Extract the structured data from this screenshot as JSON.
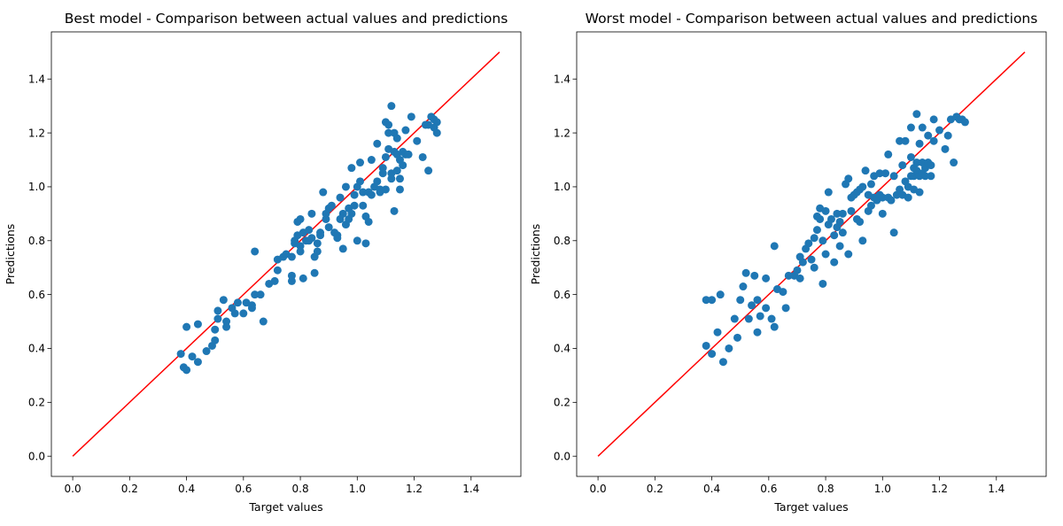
{
  "chart_data": [
    {
      "type": "scatter",
      "title": "Best model - Comparison between actual values and predictions",
      "xlabel": "Target values",
      "ylabel": "Predictions",
      "xlim": [
        -0.075,
        1.575
      ],
      "ylim": [
        -0.075,
        1.575
      ],
      "xticks": [
        0.0,
        0.2,
        0.4,
        0.6,
        0.8,
        1.0,
        1.2,
        1.4
      ],
      "yticks": [
        0.0,
        0.2,
        0.4,
        0.6,
        0.8,
        1.0,
        1.2,
        1.4
      ],
      "grid": false,
      "point_color": "#1f77b4",
      "line_color": "#ff0000",
      "reference_line": [
        [
          0.0,
          0.0
        ],
        [
          1.5,
          1.5
        ]
      ],
      "points": [
        [
          0.38,
          0.38
        ],
        [
          0.39,
          0.33
        ],
        [
          0.4,
          0.32
        ],
        [
          0.4,
          0.48
        ],
        [
          0.42,
          0.37
        ],
        [
          0.44,
          0.35
        ],
        [
          0.44,
          0.49
        ],
        [
          0.47,
          0.39
        ],
        [
          0.49,
          0.41
        ],
        [
          0.5,
          0.43
        ],
        [
          0.5,
          0.47
        ],
        [
          0.51,
          0.51
        ],
        [
          0.51,
          0.54
        ],
        [
          0.53,
          0.58
        ],
        [
          0.54,
          0.5
        ],
        [
          0.54,
          0.48
        ],
        [
          0.56,
          0.55
        ],
        [
          0.57,
          0.53
        ],
        [
          0.58,
          0.57
        ],
        [
          0.6,
          0.53
        ],
        [
          0.61,
          0.57
        ],
        [
          0.63,
          0.55
        ],
        [
          0.63,
          0.56
        ],
        [
          0.64,
          0.6
        ],
        [
          0.64,
          0.76
        ],
        [
          0.66,
          0.6
        ],
        [
          0.67,
          0.5
        ],
        [
          0.69,
          0.64
        ],
        [
          0.71,
          0.65
        ],
        [
          0.72,
          0.69
        ],
        [
          0.72,
          0.73
        ],
        [
          0.74,
          0.74
        ],
        [
          0.75,
          0.75
        ],
        [
          0.77,
          0.65
        ],
        [
          0.77,
          0.67
        ],
        [
          0.77,
          0.74
        ],
        [
          0.78,
          0.79
        ],
        [
          0.78,
          0.8
        ],
        [
          0.79,
          0.82
        ],
        [
          0.79,
          0.87
        ],
        [
          0.8,
          0.88
        ],
        [
          0.8,
          0.78
        ],
        [
          0.8,
          0.76
        ],
        [
          0.81,
          0.66
        ],
        [
          0.81,
          0.83
        ],
        [
          0.82,
          0.8
        ],
        [
          0.83,
          0.8
        ],
        [
          0.83,
          0.84
        ],
        [
          0.84,
          0.9
        ],
        [
          0.84,
          0.81
        ],
        [
          0.85,
          0.68
        ],
        [
          0.85,
          0.74
        ],
        [
          0.86,
          0.76
        ],
        [
          0.86,
          0.79
        ],
        [
          0.87,
          0.82
        ],
        [
          0.87,
          0.83
        ],
        [
          0.88,
          0.98
        ],
        [
          0.89,
          0.88
        ],
        [
          0.89,
          0.9
        ],
        [
          0.9,
          0.85
        ],
        [
          0.9,
          0.92
        ],
        [
          0.91,
          0.93
        ],
        [
          0.92,
          0.83
        ],
        [
          0.93,
          0.82
        ],
        [
          0.93,
          0.81
        ],
        [
          0.94,
          0.88
        ],
        [
          0.94,
          0.96
        ],
        [
          0.95,
          0.9
        ],
        [
          0.95,
          0.77
        ],
        [
          0.96,
          0.86
        ],
        [
          0.96,
          1.0
        ],
        [
          0.97,
          0.88
        ],
        [
          0.97,
          0.92
        ],
        [
          0.98,
          0.9
        ],
        [
          0.98,
          1.07
        ],
        [
          0.99,
          0.97
        ],
        [
          0.99,
          0.93
        ],
        [
          1.0,
          0.8
        ],
        [
          1.0,
          1.0
        ],
        [
          1.01,
          1.02
        ],
        [
          1.01,
          1.09
        ],
        [
          1.02,
          0.93
        ],
        [
          1.02,
          0.98
        ],
        [
          1.03,
          0.79
        ],
        [
          1.03,
          0.89
        ],
        [
          1.04,
          0.87
        ],
        [
          1.04,
          0.98
        ],
        [
          1.05,
          0.97
        ],
        [
          1.05,
          1.1
        ],
        [
          1.06,
          1.0
        ],
        [
          1.07,
          1.02
        ],
        [
          1.07,
          1.16
        ],
        [
          1.08,
          0.98
        ],
        [
          1.08,
          0.99
        ],
        [
          1.09,
          1.07
        ],
        [
          1.09,
          1.05
        ],
        [
          1.1,
          0.99
        ],
        [
          1.1,
          1.11
        ],
        [
          1.1,
          1.24
        ],
        [
          1.11,
          1.23
        ],
        [
          1.11,
          1.2
        ],
        [
          1.11,
          1.14
        ],
        [
          1.12,
          1.03
        ],
        [
          1.12,
          1.3
        ],
        [
          1.12,
          1.05
        ],
        [
          1.13,
          1.2
        ],
        [
          1.13,
          1.13
        ],
        [
          1.13,
          0.91
        ],
        [
          1.14,
          1.12
        ],
        [
          1.14,
          1.06
        ],
        [
          1.14,
          1.18
        ],
        [
          1.15,
          1.1
        ],
        [
          1.15,
          1.03
        ],
        [
          1.15,
          0.99
        ],
        [
          1.16,
          1.13
        ],
        [
          1.16,
          1.08
        ],
        [
          1.17,
          1.21
        ],
        [
          1.17,
          1.12
        ],
        [
          1.18,
          1.12
        ],
        [
          1.19,
          1.26
        ],
        [
          1.21,
          1.17
        ],
        [
          1.23,
          1.11
        ],
        [
          1.24,
          1.23
        ],
        [
          1.25,
          1.06
        ],
        [
          1.25,
          1.23
        ],
        [
          1.26,
          1.26
        ],
        [
          1.27,
          1.25
        ],
        [
          1.27,
          1.22
        ],
        [
          1.28,
          1.24
        ],
        [
          1.28,
          1.2
        ]
      ]
    },
    {
      "type": "scatter",
      "title": "Worst model - Comparison between actual values and predictions",
      "xlabel": "Target values",
      "ylabel": "Predictions",
      "xlim": [
        -0.075,
        1.575
      ],
      "ylim": [
        -0.075,
        1.575
      ],
      "xticks": [
        0.0,
        0.2,
        0.4,
        0.6,
        0.8,
        1.0,
        1.2,
        1.4
      ],
      "yticks": [
        0.0,
        0.2,
        0.4,
        0.6,
        0.8,
        1.0,
        1.2,
        1.4
      ],
      "grid": false,
      "point_color": "#1f77b4",
      "line_color": "#ff0000",
      "reference_line": [
        [
          0.0,
          0.0
        ],
        [
          1.5,
          1.5
        ]
      ],
      "points": [
        [
          0.38,
          0.41
        ],
        [
          0.38,
          0.58
        ],
        [
          0.4,
          0.38
        ],
        [
          0.4,
          0.58
        ],
        [
          0.42,
          0.46
        ],
        [
          0.43,
          0.6
        ],
        [
          0.44,
          0.35
        ],
        [
          0.46,
          0.4
        ],
        [
          0.48,
          0.51
        ],
        [
          0.49,
          0.44
        ],
        [
          0.5,
          0.58
        ],
        [
          0.51,
          0.63
        ],
        [
          0.52,
          0.68
        ],
        [
          0.53,
          0.51
        ],
        [
          0.54,
          0.56
        ],
        [
          0.55,
          0.67
        ],
        [
          0.56,
          0.46
        ],
        [
          0.56,
          0.58
        ],
        [
          0.57,
          0.52
        ],
        [
          0.59,
          0.66
        ],
        [
          0.59,
          0.55
        ],
        [
          0.61,
          0.51
        ],
        [
          0.62,
          0.48
        ],
        [
          0.62,
          0.78
        ],
        [
          0.63,
          0.62
        ],
        [
          0.65,
          0.61
        ],
        [
          0.66,
          0.55
        ],
        [
          0.67,
          0.67
        ],
        [
          0.69,
          0.67
        ],
        [
          0.7,
          0.69
        ],
        [
          0.71,
          0.74
        ],
        [
          0.71,
          0.66
        ],
        [
          0.72,
          0.72
        ],
        [
          0.73,
          0.77
        ],
        [
          0.74,
          0.79
        ],
        [
          0.75,
          0.73
        ],
        [
          0.76,
          0.7
        ],
        [
          0.76,
          0.81
        ],
        [
          0.77,
          0.84
        ],
        [
          0.77,
          0.89
        ],
        [
          0.78,
          0.92
        ],
        [
          0.78,
          0.88
        ],
        [
          0.79,
          0.64
        ],
        [
          0.79,
          0.8
        ],
        [
          0.8,
          0.91
        ],
        [
          0.8,
          0.75
        ],
        [
          0.81,
          0.98
        ],
        [
          0.81,
          0.86
        ],
        [
          0.82,
          0.88
        ],
        [
          0.83,
          0.72
        ],
        [
          0.83,
          0.82
        ],
        [
          0.84,
          0.9
        ],
        [
          0.84,
          0.85
        ],
        [
          0.85,
          0.78
        ],
        [
          0.85,
          0.87
        ],
        [
          0.86,
          0.83
        ],
        [
          0.86,
          0.9
        ],
        [
          0.87,
          1.01
        ],
        [
          0.88,
          0.75
        ],
        [
          0.88,
          1.03
        ],
        [
          0.89,
          0.91
        ],
        [
          0.89,
          0.96
        ],
        [
          0.9,
          0.97
        ],
        [
          0.91,
          0.88
        ],
        [
          0.91,
          0.98
        ],
        [
          0.92,
          0.99
        ],
        [
          0.92,
          0.87
        ],
        [
          0.93,
          0.8
        ],
        [
          0.93,
          1.0
        ],
        [
          0.94,
          1.06
        ],
        [
          0.95,
          0.97
        ],
        [
          0.95,
          0.91
        ],
        [
          0.96,
          0.93
        ],
        [
          0.96,
          1.01
        ],
        [
          0.97,
          0.96
        ],
        [
          0.97,
          1.04
        ],
        [
          0.98,
          0.95
        ],
        [
          0.99,
          0.97
        ],
        [
          0.99,
          1.05
        ],
        [
          1.0,
          0.9
        ],
        [
          1.0,
          0.96
        ],
        [
          1.01,
          1.05
        ],
        [
          1.02,
          0.96
        ],
        [
          1.02,
          1.12
        ],
        [
          1.03,
          0.95
        ],
        [
          1.04,
          1.04
        ],
        [
          1.04,
          0.83
        ],
        [
          1.05,
          0.97
        ],
        [
          1.06,
          0.99
        ],
        [
          1.06,
          1.17
        ],
        [
          1.07,
          0.97
        ],
        [
          1.07,
          1.08
        ],
        [
          1.08,
          1.02
        ],
        [
          1.08,
          1.17
        ],
        [
          1.09,
          0.96
        ],
        [
          1.09,
          1.0
        ],
        [
          1.1,
          1.04
        ],
        [
          1.1,
          1.11
        ],
        [
          1.1,
          1.22
        ],
        [
          1.11,
          1.04
        ],
        [
          1.11,
          1.07
        ],
        [
          1.11,
          0.99
        ],
        [
          1.12,
          1.27
        ],
        [
          1.12,
          1.09
        ],
        [
          1.12,
          1.06
        ],
        [
          1.13,
          1.16
        ],
        [
          1.13,
          1.04
        ],
        [
          1.13,
          0.98
        ],
        [
          1.14,
          1.09
        ],
        [
          1.14,
          1.05
        ],
        [
          1.14,
          1.22
        ],
        [
          1.15,
          1.07
        ],
        [
          1.15,
          1.04
        ],
        [
          1.16,
          1.19
        ],
        [
          1.16,
          1.09
        ],
        [
          1.17,
          1.08
        ],
        [
          1.17,
          1.04
        ],
        [
          1.18,
          1.17
        ],
        [
          1.18,
          1.25
        ],
        [
          1.2,
          1.21
        ],
        [
          1.22,
          1.14
        ],
        [
          1.23,
          1.19
        ],
        [
          1.24,
          1.25
        ],
        [
          1.25,
          1.09
        ],
        [
          1.26,
          1.26
        ],
        [
          1.27,
          1.25
        ],
        [
          1.28,
          1.25
        ],
        [
          1.29,
          1.24
        ]
      ]
    }
  ]
}
